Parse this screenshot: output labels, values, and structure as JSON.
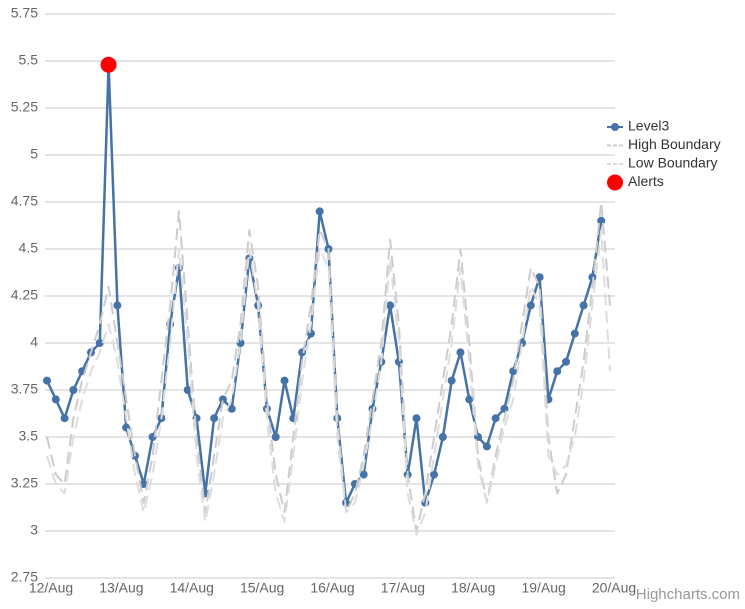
{
  "chart_data": {
    "type": "line",
    "categories": [
      "12/Aug",
      null,
      null,
      null,
      null,
      null,
      null,
      null,
      "13/Aug",
      null,
      null,
      null,
      null,
      null,
      null,
      null,
      "14/Aug",
      null,
      null,
      null,
      null,
      null,
      null,
      null,
      "15/Aug",
      null,
      null,
      null,
      null,
      null,
      null,
      null,
      "16/Aug",
      null,
      null,
      null,
      null,
      null,
      null,
      null,
      "17/Aug",
      null,
      null,
      null,
      null,
      null,
      null,
      null,
      "18/Aug",
      null,
      null,
      null,
      null,
      null,
      null,
      null,
      "19/Aug",
      null,
      null,
      null,
      null,
      null,
      null,
      null,
      "20/Aug"
    ],
    "series": [
      {
        "name": "Level3",
        "color": "#4572a7",
        "line": true,
        "dashed": false,
        "marker": true,
        "values": [
          3.8,
          3.7,
          3.6,
          3.75,
          3.85,
          3.95,
          4.0,
          5.48,
          4.2,
          3.55,
          3.4,
          3.25,
          3.5,
          3.6,
          4.1,
          4.4,
          3.75,
          3.6,
          3.2,
          3.6,
          3.7,
          3.65,
          4.0,
          4.45,
          4.2,
          3.65,
          3.5,
          3.8,
          3.6,
          3.95,
          4.05,
          4.7,
          4.5,
          3.6,
          3.15,
          3.25,
          3.3,
          3.65,
          3.9,
          4.2,
          3.9,
          3.3,
          3.6,
          3.15,
          3.3,
          3.5,
          3.8,
          3.95,
          3.7,
          3.5,
          3.45,
          3.6,
          3.65,
          3.85,
          4.0,
          4.2,
          4.35,
          3.7,
          3.85,
          3.9,
          4.05,
          4.2,
          4.35,
          4.65,
          null
        ]
      },
      {
        "name": "High Boundary",
        "color": "#cccccc",
        "line": true,
        "dashed": true,
        "marker": false,
        "values": [
          3.5,
          3.3,
          3.25,
          3.6,
          3.8,
          3.95,
          4.1,
          4.3,
          4.0,
          3.7,
          3.4,
          3.15,
          3.4,
          3.8,
          4.2,
          4.7,
          4.1,
          3.5,
          3.1,
          3.4,
          3.7,
          3.8,
          4.1,
          4.6,
          4.3,
          3.7,
          3.3,
          3.1,
          3.5,
          3.9,
          4.2,
          4.6,
          4.5,
          3.6,
          3.1,
          3.2,
          3.4,
          3.7,
          4.0,
          4.55,
          4.1,
          3.3,
          3.0,
          3.2,
          3.5,
          3.8,
          4.1,
          4.5,
          4.0,
          3.4,
          3.15,
          3.4,
          3.6,
          3.8,
          4.1,
          4.4,
          4.3,
          3.5,
          3.2,
          3.3,
          3.6,
          3.9,
          4.3,
          4.75,
          4.2
        ]
      },
      {
        "name": "Low Boundary",
        "color": "#dddddd",
        "line": true,
        "dashed": true,
        "marker": false,
        "values": [
          3.4,
          3.25,
          3.2,
          3.5,
          3.7,
          3.85,
          3.95,
          4.1,
          3.9,
          3.6,
          3.3,
          3.1,
          3.3,
          3.6,
          4.0,
          4.5,
          4.0,
          3.4,
          3.05,
          3.3,
          3.6,
          3.7,
          4.0,
          4.5,
          4.2,
          3.6,
          3.2,
          3.05,
          3.4,
          3.8,
          4.1,
          4.5,
          4.4,
          3.5,
          3.1,
          3.15,
          3.35,
          3.6,
          3.9,
          4.45,
          4.0,
          3.2,
          2.98,
          3.1,
          3.4,
          3.7,
          4.0,
          4.4,
          3.9,
          3.35,
          3.15,
          3.35,
          3.55,
          3.7,
          4.0,
          4.3,
          4.2,
          3.4,
          3.3,
          3.35,
          3.5,
          3.8,
          4.2,
          4.6,
          3.85
        ]
      },
      {
        "name": "Alerts",
        "color": "#ff0000",
        "line": false,
        "dashed": false,
        "marker": true,
        "values": [
          null,
          null,
          null,
          null,
          null,
          null,
          null,
          5.48,
          null,
          null,
          null,
          null,
          null,
          null,
          null,
          null,
          null,
          null,
          null,
          null,
          null,
          null,
          null,
          null,
          null,
          null,
          null,
          null,
          null,
          null,
          null,
          null,
          null,
          null,
          null,
          null,
          null,
          null,
          null,
          null,
          null,
          null,
          null,
          null,
          null,
          null,
          null,
          null,
          null,
          null,
          null,
          null,
          null,
          null,
          null,
          null,
          null,
          null,
          null,
          null,
          null,
          null,
          null,
          null,
          null
        ]
      }
    ],
    "ylim": [
      2.75,
      5.75
    ],
    "yticks": [
      2.75,
      3,
      3.25,
      3.5,
      3.75,
      4,
      4.25,
      4.5,
      4.75,
      5,
      5.25,
      5.5,
      5.75
    ],
    "grid": true,
    "legend": "right",
    "credits": "Highcharts.com"
  }
}
